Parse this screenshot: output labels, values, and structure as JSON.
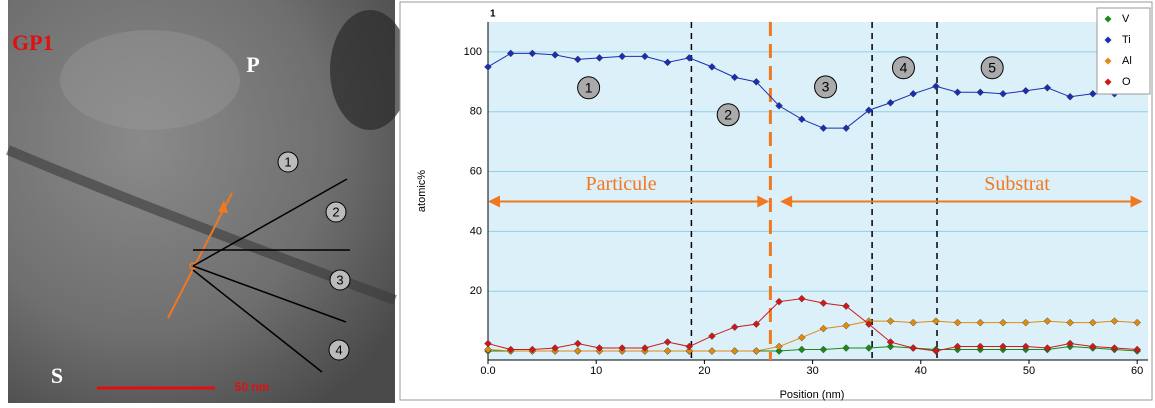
{
  "image": {
    "sample_label": "GP1",
    "top_label": "P",
    "bottom_label": "S",
    "scale_bar": "50 nm",
    "zones": [
      "1",
      "2",
      "3",
      "4"
    ]
  },
  "chart_data": {
    "type": "line",
    "panel_label": "1",
    "xlabel": "Position (nm)",
    "ylabel": "atomic%",
    "xlim": [
      0,
      61
    ],
    "ylim": [
      -3,
      110
    ],
    "xticks": [
      {
        "value": 0,
        "label": "0.0"
      },
      10,
      20,
      30,
      40,
      50,
      60
    ],
    "yticks": [
      20,
      40,
      60,
      80,
      100
    ],
    "grid": true,
    "legend": "upper right",
    "x": [
      0,
      2.1,
      4.1,
      6.2,
      8.3,
      10.3,
      12.4,
      14.5,
      16.6,
      18.6,
      20.7,
      22.8,
      24.8,
      26.9,
      29.0,
      31.0,
      33.1,
      35.2,
      37.2,
      39.3,
      41.4,
      43.4,
      45.5,
      47.6,
      49.7,
      51.7,
      53.8,
      55.9,
      57.9,
      60.0
    ],
    "series": [
      {
        "name": "V",
        "color": "#1a8a1a",
        "values": [
          0,
          0,
          0,
          0,
          0,
          0,
          0,
          0,
          0,
          0,
          0,
          0,
          0,
          0,
          0.5,
          0.5,
          1,
          1,
          1.5,
          1,
          0.5,
          0.5,
          0.5,
          0.5,
          0.5,
          0.5,
          1.5,
          1,
          0.5,
          0
        ]
      },
      {
        "name": "Ti",
        "color": "#1a2fb0",
        "values": [
          95,
          99.5,
          99.5,
          99,
          97.5,
          98,
          98.5,
          98.5,
          96.5,
          98,
          95,
          91.5,
          90,
          82,
          77.5,
          74.5,
          74.5,
          80.5,
          83,
          86,
          88.5,
          86.5,
          86.5,
          86,
          87,
          88,
          85,
          86,
          86,
          87
        ]
      },
      {
        "name": "Al",
        "color": "#e08a10",
        "values": [
          0.5,
          0,
          0,
          0,
          0,
          0,
          0,
          0,
          0,
          0,
          0,
          0,
          0,
          1.5,
          4.5,
          7.5,
          8.5,
          10,
          10,
          9.5,
          10,
          9.5,
          9.5,
          9.5,
          9.5,
          10,
          9.5,
          9.5,
          10,
          9.5
        ]
      },
      {
        "name": "O",
        "color": "#d01818",
        "values": [
          2.5,
          0.5,
          0.5,
          1,
          2.5,
          1,
          1,
          1,
          3,
          1.5,
          5,
          8,
          9,
          16.5,
          17.5,
          16,
          15,
          9,
          3,
          1,
          0,
          1.5,
          1.5,
          1.5,
          1.5,
          1,
          2.5,
          1.5,
          1,
          0.5
        ]
      }
    ],
    "vlines": [
      {
        "x": 18.8,
        "color": "#000000"
      },
      {
        "x": 26.1,
        "color": "#f07820"
      },
      {
        "x": 35.5,
        "color": "#000000"
      },
      {
        "x": 41.5,
        "color": "#000000"
      }
    ],
    "arrows": [
      {
        "text": "Particule",
        "x0": 0,
        "x1": 26,
        "y": 50,
        "tx": 12.3,
        "ty": 55.3,
        "color": "#f07820"
      },
      {
        "text": "Substrat",
        "x0": 27,
        "x1": 60.5,
        "y": 50,
        "tx": 48.9,
        "ty": 55.3,
        "color": "#f07820"
      }
    ],
    "annotations": [
      {
        "text": "1",
        "x": 9.3,
        "y": 88
      },
      {
        "text": "2",
        "x": 22.2,
        "y": 79
      },
      {
        "text": "3",
        "x": 31.2,
        "y": 88.3
      },
      {
        "text": "4",
        "x": 38.4,
        "y": 94.7
      },
      {
        "text": "5",
        "x": 46.6,
        "y": 94.7
      }
    ]
  }
}
